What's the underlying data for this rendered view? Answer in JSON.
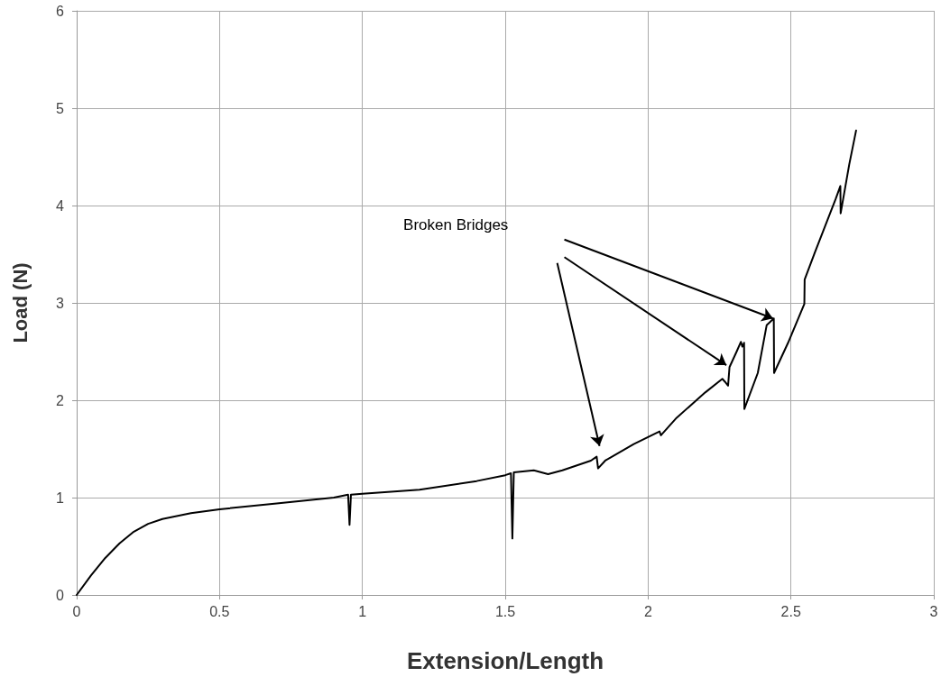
{
  "chart_data": {
    "type": "line",
    "xlabel": "Extension/Length",
    "ylabel": "Load (N)",
    "x": [
      0,
      0.05,
      0.1,
      0.15,
      0.2,
      0.25,
      0.3,
      0.4,
      0.5,
      0.7,
      0.9,
      0.95,
      0.955,
      0.96,
      1.0,
      1.2,
      1.4,
      1.5,
      1.52,
      1.525,
      1.53,
      1.6,
      1.65,
      1.7,
      1.8,
      1.82,
      1.825,
      1.85,
      1.95,
      2.04,
      2.045,
      2.1,
      2.2,
      2.26,
      2.269,
      2.28,
      2.285,
      2.31,
      2.325,
      2.33,
      2.336,
      2.337,
      2.384,
      2.415,
      2.44,
      2.441,
      2.49,
      2.547,
      2.548,
      2.584,
      2.657,
      2.673,
      2.674,
      2.704,
      2.728
    ],
    "series": [
      {
        "color": "#000000",
        "values": [
          0,
          0.2,
          0.38,
          0.53,
          0.65,
          0.73,
          0.78,
          0.84,
          0.88,
          0.94,
          1.0,
          1.03,
          0.72,
          1.03,
          1.04,
          1.08,
          1.17,
          1.23,
          1.25,
          0.58,
          1.26,
          1.28,
          1.24,
          1.28,
          1.38,
          1.42,
          1.3,
          1.38,
          1.55,
          1.68,
          1.64,
          1.82,
          2.08,
          2.22,
          2.19,
          2.15,
          2.34,
          2.5,
          2.6,
          2.55,
          2.59,
          1.91,
          2.28,
          2.77,
          2.84,
          2.28,
          2.59,
          2.99,
          3.24,
          3.52,
          4.07,
          4.2,
          3.92,
          4.42,
          4.77
        ]
      }
    ],
    "xlim": [
      0,
      3
    ],
    "xticks": [
      0,
      0.5,
      1,
      1.5,
      2,
      2.5,
      3
    ],
    "ylim": [
      0,
      6
    ],
    "yticks": [
      0,
      1,
      2,
      3,
      4,
      5,
      6
    ],
    "grid": true,
    "marker": "none",
    "line_style": "solid",
    "annotations": [
      "Broken Bridges"
    ]
  }
}
